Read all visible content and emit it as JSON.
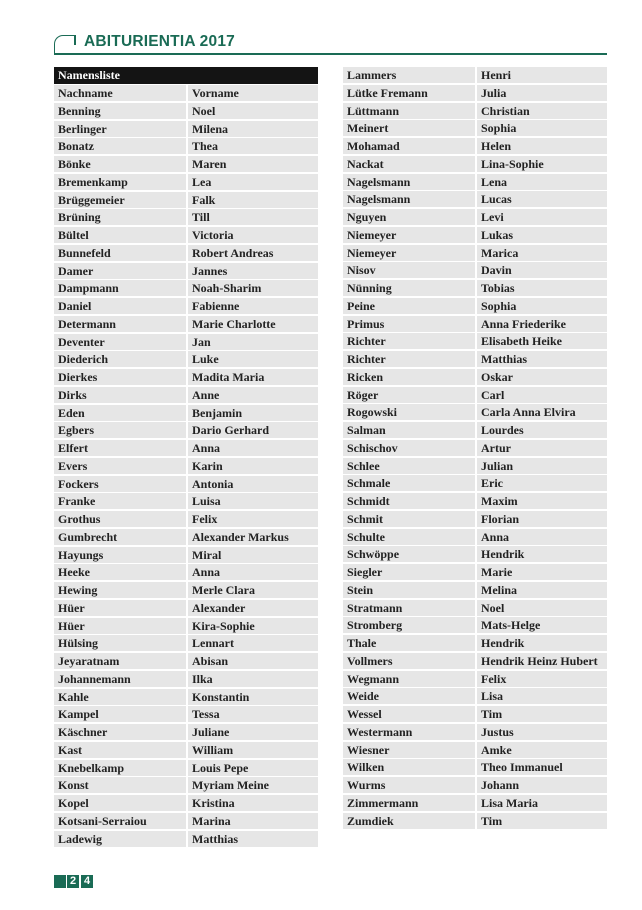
{
  "header": {
    "title": "ABITURIENTIA 2017"
  },
  "colors": {
    "accent": "#1a6b55",
    "table_title_bg": "#141414",
    "cell_bg": "#e6e6e6"
  },
  "table": {
    "title": "Namensliste",
    "columns": [
      "Nachname",
      "Vorname"
    ],
    "left_rows": [
      [
        "Benning",
        "Noel"
      ],
      [
        "Berlinger",
        "Milena"
      ],
      [
        "Bonatz",
        "Thea"
      ],
      [
        "Bönke",
        "Maren"
      ],
      [
        "Bremenkamp",
        "Lea"
      ],
      [
        "Brüggemeier",
        "Falk"
      ],
      [
        "Brüning",
        "Till"
      ],
      [
        "Bültel",
        "Victoria"
      ],
      [
        "Bunnefeld",
        "Robert Andreas"
      ],
      [
        "Damer",
        "Jannes"
      ],
      [
        "Dampmann",
        "Noah-Sharim"
      ],
      [
        "Daniel",
        "Fabienne"
      ],
      [
        "Determann",
        "Marie Charlotte"
      ],
      [
        "Deventer",
        "Jan"
      ],
      [
        "Diederich",
        "Luke"
      ],
      [
        "Dierkes",
        "Madita Maria"
      ],
      [
        "Dirks",
        "Anne"
      ],
      [
        "Eden",
        "Benjamin"
      ],
      [
        "Egbers",
        "Dario Gerhard"
      ],
      [
        "Elfert",
        "Anna"
      ],
      [
        "Evers",
        "Karin"
      ],
      [
        "Fockers",
        "Antonia"
      ],
      [
        "Franke",
        "Luisa"
      ],
      [
        "Grothus",
        "Felix"
      ],
      [
        "Gumbrecht",
        "Alexander Markus"
      ],
      [
        "Hayungs",
        "Miral"
      ],
      [
        "Heeke",
        "Anna"
      ],
      [
        "Hewing",
        "Merle Clara"
      ],
      [
        "Hüer",
        "Alexander"
      ],
      [
        "Hüer",
        "Kira-Sophie"
      ],
      [
        "Hülsing",
        "Lennart"
      ],
      [
        "Jeyaratnam",
        "Abisan"
      ],
      [
        "Johannemann",
        "Ilka"
      ],
      [
        "Kahle",
        "Konstantin"
      ],
      [
        "Kampel",
        "Tessa"
      ],
      [
        "Käschner",
        "Juliane"
      ],
      [
        "Kast",
        "William"
      ],
      [
        "Knebelkamp",
        "Louis Pepe"
      ],
      [
        "Konst",
        "Myriam Meine"
      ],
      [
        "Kopel",
        "Kristina"
      ],
      [
        "Kotsani-Serraiou",
        "Marina"
      ],
      [
        "Ladewig",
        "Matthias"
      ]
    ],
    "right_rows": [
      [
        "Lammers",
        "Henri"
      ],
      [
        "Lütke Fremann",
        "Julia"
      ],
      [
        "Lüttmann",
        "Christian"
      ],
      [
        "Meinert",
        "Sophia"
      ],
      [
        "Mohamad",
        "Helen"
      ],
      [
        "Nackat",
        "Lina-Sophie"
      ],
      [
        "Nagelsmann",
        "Lena"
      ],
      [
        "Nagelsmann",
        "Lucas"
      ],
      [
        "Nguyen",
        "Levi"
      ],
      [
        "Niemeyer",
        "Lukas"
      ],
      [
        "Niemeyer",
        "Marica"
      ],
      [
        "Nisov",
        "Davin"
      ],
      [
        "Nünning",
        "Tobias"
      ],
      [
        "Peine",
        "Sophia"
      ],
      [
        "Primus",
        "Anna Friederike"
      ],
      [
        "Richter",
        "Elisabeth Heike"
      ],
      [
        "Richter",
        "Matthias"
      ],
      [
        "Ricken",
        "Oskar"
      ],
      [
        "Röger",
        "Carl"
      ],
      [
        "Rogowski",
        "Carla Anna Elvira"
      ],
      [
        "Salman",
        "Lourdes"
      ],
      [
        "Schischov",
        "Artur"
      ],
      [
        "Schlee",
        "Julian"
      ],
      [
        "Schmale",
        "Eric"
      ],
      [
        "Schmidt",
        "Maxim"
      ],
      [
        "Schmit",
        "Florian"
      ],
      [
        "Schulte",
        "Anna"
      ],
      [
        "Schwöppe",
        "Hendrik"
      ],
      [
        "Siegler",
        "Marie"
      ],
      [
        "Stein",
        "Melina"
      ],
      [
        "Stratmann",
        "Noel"
      ],
      [
        "Stromberg",
        "Mats-Helge"
      ],
      [
        "Thale",
        "Hendrik"
      ],
      [
        "Vollmers",
        "Hendrik Heinz Hubert"
      ],
      [
        "Wegmann",
        "Felix"
      ],
      [
        "Weide",
        "Lisa"
      ],
      [
        "Wessel",
        "Tim"
      ],
      [
        "Westermann",
        "Justus"
      ],
      [
        "Wiesner",
        "Amke"
      ],
      [
        "Wilken",
        "Theo Immanuel"
      ],
      [
        "Wurms",
        "Johann"
      ],
      [
        "Zimmermann",
        "Lisa Maria"
      ],
      [
        "Zumdiek",
        "Tim"
      ]
    ]
  },
  "footer": {
    "page_digits": [
      "2",
      "4"
    ]
  }
}
